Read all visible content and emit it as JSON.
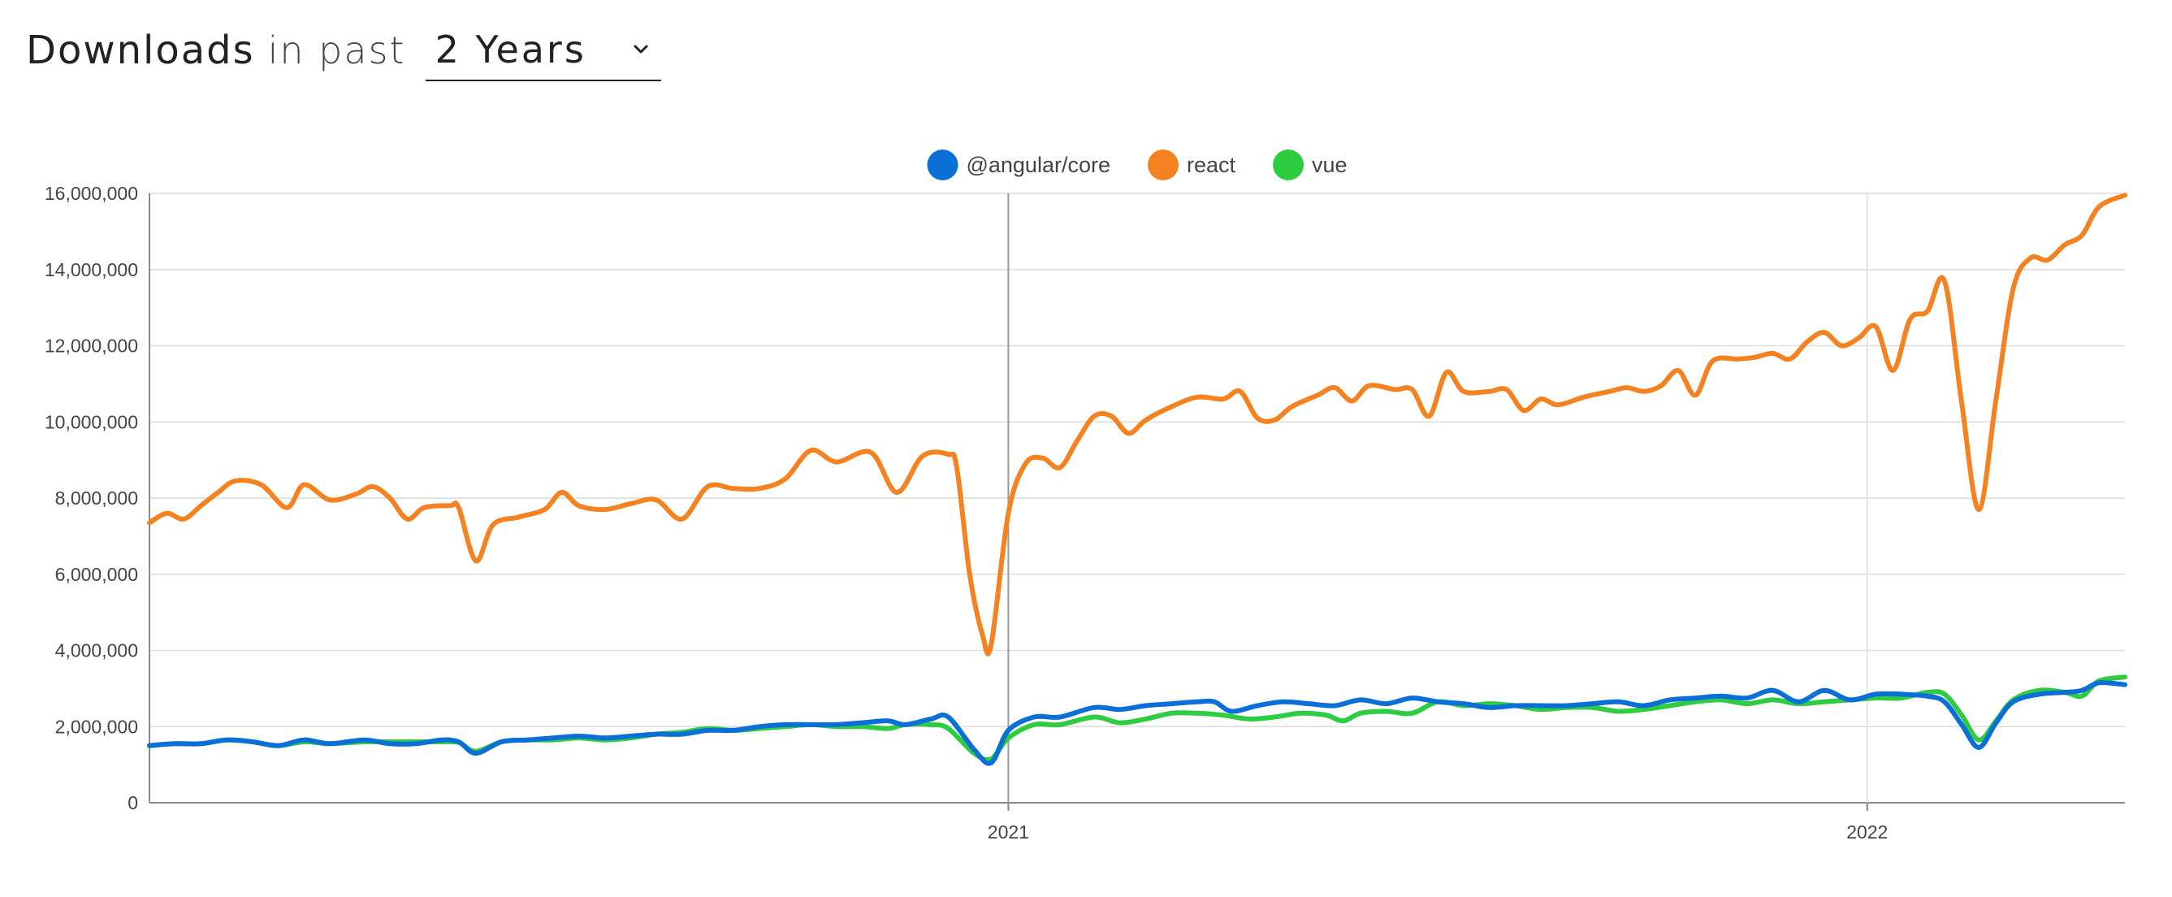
{
  "header": {
    "title_strong": "Downloads",
    "title_light": "in past",
    "period_selected": "2 Years"
  },
  "chart_data": {
    "type": "line",
    "title": "",
    "xlabel": "",
    "ylabel": "",
    "ylim": [
      0,
      16000000
    ],
    "yticks": [
      0,
      2000000,
      4000000,
      6000000,
      8000000,
      10000000,
      12000000,
      14000000,
      16000000
    ],
    "ytick_labels": [
      "0",
      "2,000,000",
      "4,000,000",
      "6,000,000",
      "8,000,000",
      "10,000,000",
      "12,000,000",
      "14,000,000",
      "16,000,000"
    ],
    "xlim": [
      2020.0,
      2022.3
    ],
    "xticks": [
      2021,
      2022
    ],
    "xtick_labels": [
      "2021",
      "2022"
    ],
    "grid": true,
    "legend_position": "top-center",
    "series": [
      {
        "name": "react",
        "color": "#F58220",
        "points": [
          [
            2020.0,
            7350000
          ],
          [
            2020.02,
            7600000
          ],
          [
            2020.04,
            7450000
          ],
          [
            2020.06,
            7800000
          ],
          [
            2020.08,
            8150000
          ],
          [
            2020.1,
            8450000
          ],
          [
            2020.13,
            8350000
          ],
          [
            2020.16,
            7750000
          ],
          [
            2020.18,
            8350000
          ],
          [
            2020.21,
            7950000
          ],
          [
            2020.24,
            8100000
          ],
          [
            2020.26,
            8300000
          ],
          [
            2020.28,
            8000000
          ],
          [
            2020.3,
            7450000
          ],
          [
            2020.32,
            7750000
          ],
          [
            2020.35,
            7800000
          ],
          [
            2020.36,
            7750000
          ],
          [
            2020.38,
            6350000
          ],
          [
            2020.4,
            7300000
          ],
          [
            2020.43,
            7500000
          ],
          [
            2020.46,
            7700000
          ],
          [
            2020.48,
            8150000
          ],
          [
            2020.5,
            7800000
          ],
          [
            2020.53,
            7700000
          ],
          [
            2020.56,
            7850000
          ],
          [
            2020.59,
            7950000
          ],
          [
            2020.62,
            7450000
          ],
          [
            2020.65,
            8300000
          ],
          [
            2020.68,
            8250000
          ],
          [
            2020.71,
            8250000
          ],
          [
            2020.74,
            8500000
          ],
          [
            2020.77,
            9250000
          ],
          [
            2020.8,
            8950000
          ],
          [
            2020.84,
            9200000
          ],
          [
            2020.87,
            8150000
          ],
          [
            2020.9,
            9100000
          ],
          [
            2020.93,
            9150000
          ],
          [
            2020.94,
            8800000
          ],
          [
            2020.955,
            6000000
          ],
          [
            2020.97,
            4400000
          ],
          [
            2020.98,
            4150000
          ],
          [
            2021.0,
            7600000
          ],
          [
            2021.02,
            8900000
          ],
          [
            2021.04,
            9050000
          ],
          [
            2021.06,
            8800000
          ],
          [
            2021.08,
            9500000
          ],
          [
            2021.1,
            10150000
          ],
          [
            2021.12,
            10150000
          ],
          [
            2021.14,
            9700000
          ],
          [
            2021.16,
            10050000
          ],
          [
            2021.19,
            10400000
          ],
          [
            2021.22,
            10650000
          ],
          [
            2021.25,
            10600000
          ],
          [
            2021.27,
            10800000
          ],
          [
            2021.29,
            10100000
          ],
          [
            2021.31,
            10050000
          ],
          [
            2021.33,
            10400000
          ],
          [
            2021.36,
            10700000
          ],
          [
            2021.38,
            10900000
          ],
          [
            2021.4,
            10550000
          ],
          [
            2021.42,
            10950000
          ],
          [
            2021.45,
            10850000
          ],
          [
            2021.47,
            10850000
          ],
          [
            2021.49,
            10150000
          ],
          [
            2021.51,
            11300000
          ],
          [
            2021.53,
            10800000
          ],
          [
            2021.56,
            10800000
          ],
          [
            2021.58,
            10850000
          ],
          [
            2021.6,
            10300000
          ],
          [
            2021.62,
            10600000
          ],
          [
            2021.64,
            10450000
          ],
          [
            2021.67,
            10650000
          ],
          [
            2021.7,
            10800000
          ],
          [
            2021.72,
            10900000
          ],
          [
            2021.74,
            10800000
          ],
          [
            2021.76,
            10950000
          ],
          [
            2021.78,
            11350000
          ],
          [
            2021.8,
            10700000
          ],
          [
            2021.82,
            11600000
          ],
          [
            2021.85,
            11650000
          ],
          [
            2021.87,
            11700000
          ],
          [
            2021.89,
            11800000
          ],
          [
            2021.91,
            11650000
          ],
          [
            2021.93,
            12100000
          ],
          [
            2021.95,
            12350000
          ],
          [
            2021.97,
            12000000
          ],
          [
            2021.99,
            12200000
          ],
          [
            2022.01,
            12500000
          ],
          [
            2022.03,
            11350000
          ],
          [
            2022.05,
            12700000
          ],
          [
            2022.07,
            12900000
          ],
          [
            2022.09,
            13700000
          ],
          [
            2022.11,
            10500000
          ],
          [
            2022.13,
            7700000
          ],
          [
            2022.15,
            10600000
          ],
          [
            2022.17,
            13500000
          ],
          [
            2022.19,
            14300000
          ],
          [
            2022.21,
            14250000
          ],
          [
            2022.23,
            14650000
          ],
          [
            2022.25,
            14900000
          ],
          [
            2022.27,
            15650000
          ],
          [
            2022.3,
            15950000
          ]
        ]
      },
      {
        "name": "vue",
        "color": "#2ECC40",
        "points": [
          [
            2020.0,
            1500000
          ],
          [
            2020.03,
            1550000
          ],
          [
            2020.06,
            1550000
          ],
          [
            2020.09,
            1650000
          ],
          [
            2020.12,
            1600000
          ],
          [
            2020.15,
            1500000
          ],
          [
            2020.18,
            1600000
          ],
          [
            2020.21,
            1550000
          ],
          [
            2020.25,
            1600000
          ],
          [
            2020.28,
            1600000
          ],
          [
            2020.31,
            1600000
          ],
          [
            2020.34,
            1600000
          ],
          [
            2020.36,
            1580000
          ],
          [
            2020.38,
            1350000
          ],
          [
            2020.41,
            1600000
          ],
          [
            2020.44,
            1650000
          ],
          [
            2020.47,
            1650000
          ],
          [
            2020.5,
            1700000
          ],
          [
            2020.53,
            1650000
          ],
          [
            2020.56,
            1700000
          ],
          [
            2020.59,
            1800000
          ],
          [
            2020.62,
            1850000
          ],
          [
            2020.65,
            1950000
          ],
          [
            2020.68,
            1900000
          ],
          [
            2020.71,
            1950000
          ],
          [
            2020.74,
            2000000
          ],
          [
            2020.77,
            2050000
          ],
          [
            2020.8,
            2000000
          ],
          [
            2020.83,
            2000000
          ],
          [
            2020.86,
            1950000
          ],
          [
            2020.88,
            2050000
          ],
          [
            2020.91,
            2050000
          ],
          [
            2020.93,
            1950000
          ],
          [
            2020.96,
            1300000
          ],
          [
            2020.98,
            1150000
          ],
          [
            2021.0,
            1700000
          ],
          [
            2021.03,
            2050000
          ],
          [
            2021.06,
            2050000
          ],
          [
            2021.1,
            2250000
          ],
          [
            2021.13,
            2100000
          ],
          [
            2021.16,
            2200000
          ],
          [
            2021.19,
            2350000
          ],
          [
            2021.22,
            2350000
          ],
          [
            2021.25,
            2300000
          ],
          [
            2021.28,
            2200000
          ],
          [
            2021.31,
            2250000
          ],
          [
            2021.34,
            2350000
          ],
          [
            2021.37,
            2300000
          ],
          [
            2021.39,
            2150000
          ],
          [
            2021.41,
            2350000
          ],
          [
            2021.44,
            2400000
          ],
          [
            2021.47,
            2350000
          ],
          [
            2021.5,
            2650000
          ],
          [
            2021.53,
            2550000
          ],
          [
            2021.56,
            2600000
          ],
          [
            2021.59,
            2550000
          ],
          [
            2021.62,
            2450000
          ],
          [
            2021.65,
            2500000
          ],
          [
            2021.68,
            2500000
          ],
          [
            2021.71,
            2400000
          ],
          [
            2021.74,
            2450000
          ],
          [
            2021.77,
            2550000
          ],
          [
            2021.8,
            2650000
          ],
          [
            2021.83,
            2700000
          ],
          [
            2021.86,
            2600000
          ],
          [
            2021.89,
            2700000
          ],
          [
            2021.92,
            2600000
          ],
          [
            2021.95,
            2650000
          ],
          [
            2021.98,
            2700000
          ],
          [
            2022.01,
            2750000
          ],
          [
            2022.04,
            2750000
          ],
          [
            2022.07,
            2900000
          ],
          [
            2022.09,
            2850000
          ],
          [
            2022.11,
            2300000
          ],
          [
            2022.13,
            1650000
          ],
          [
            2022.15,
            2150000
          ],
          [
            2022.17,
            2700000
          ],
          [
            2022.2,
            2950000
          ],
          [
            2022.23,
            2900000
          ],
          [
            2022.25,
            2800000
          ],
          [
            2022.27,
            3200000
          ],
          [
            2022.3,
            3300000
          ]
        ]
      },
      {
        "name": "@angular/core",
        "color": "#0B6FD8",
        "points": [
          [
            2020.0,
            1500000
          ],
          [
            2020.03,
            1550000
          ],
          [
            2020.06,
            1550000
          ],
          [
            2020.09,
            1650000
          ],
          [
            2020.12,
            1600000
          ],
          [
            2020.15,
            1500000
          ],
          [
            2020.18,
            1650000
          ],
          [
            2020.21,
            1550000
          ],
          [
            2020.25,
            1650000
          ],
          [
            2020.28,
            1550000
          ],
          [
            2020.31,
            1550000
          ],
          [
            2020.34,
            1650000
          ],
          [
            2020.36,
            1600000
          ],
          [
            2020.38,
            1300000
          ],
          [
            2020.41,
            1600000
          ],
          [
            2020.44,
            1650000
          ],
          [
            2020.47,
            1700000
          ],
          [
            2020.5,
            1750000
          ],
          [
            2020.53,
            1700000
          ],
          [
            2020.56,
            1750000
          ],
          [
            2020.59,
            1800000
          ],
          [
            2020.62,
            1800000
          ],
          [
            2020.65,
            1900000
          ],
          [
            2020.68,
            1900000
          ],
          [
            2020.71,
            2000000
          ],
          [
            2020.74,
            2050000
          ],
          [
            2020.77,
            2050000
          ],
          [
            2020.8,
            2050000
          ],
          [
            2020.83,
            2100000
          ],
          [
            2020.86,
            2150000
          ],
          [
            2020.88,
            2050000
          ],
          [
            2020.91,
            2200000
          ],
          [
            2020.93,
            2250000
          ],
          [
            2020.96,
            1400000
          ],
          [
            2020.98,
            1050000
          ],
          [
            2021.0,
            1900000
          ],
          [
            2021.03,
            2250000
          ],
          [
            2021.06,
            2250000
          ],
          [
            2021.1,
            2500000
          ],
          [
            2021.13,
            2450000
          ],
          [
            2021.16,
            2550000
          ],
          [
            2021.19,
            2600000
          ],
          [
            2021.22,
            2650000
          ],
          [
            2021.24,
            2650000
          ],
          [
            2021.26,
            2400000
          ],
          [
            2021.29,
            2550000
          ],
          [
            2021.32,
            2650000
          ],
          [
            2021.35,
            2600000
          ],
          [
            2021.38,
            2550000
          ],
          [
            2021.41,
            2700000
          ],
          [
            2021.44,
            2600000
          ],
          [
            2021.47,
            2750000
          ],
          [
            2021.5,
            2650000
          ],
          [
            2021.53,
            2600000
          ],
          [
            2021.56,
            2500000
          ],
          [
            2021.59,
            2550000
          ],
          [
            2021.62,
            2550000
          ],
          [
            2021.65,
            2550000
          ],
          [
            2021.68,
            2600000
          ],
          [
            2021.71,
            2650000
          ],
          [
            2021.74,
            2550000
          ],
          [
            2021.77,
            2700000
          ],
          [
            2021.8,
            2750000
          ],
          [
            2021.83,
            2800000
          ],
          [
            2021.86,
            2750000
          ],
          [
            2021.89,
            2950000
          ],
          [
            2021.92,
            2650000
          ],
          [
            2021.95,
            2950000
          ],
          [
            2021.98,
            2700000
          ],
          [
            2022.01,
            2850000
          ],
          [
            2022.04,
            2850000
          ],
          [
            2022.07,
            2800000
          ],
          [
            2022.09,
            2650000
          ],
          [
            2022.11,
            2050000
          ],
          [
            2022.13,
            1450000
          ],
          [
            2022.15,
            2100000
          ],
          [
            2022.17,
            2650000
          ],
          [
            2022.2,
            2850000
          ],
          [
            2022.23,
            2900000
          ],
          [
            2022.25,
            2950000
          ],
          [
            2022.27,
            3150000
          ],
          [
            2022.3,
            3100000
          ]
        ]
      }
    ]
  }
}
